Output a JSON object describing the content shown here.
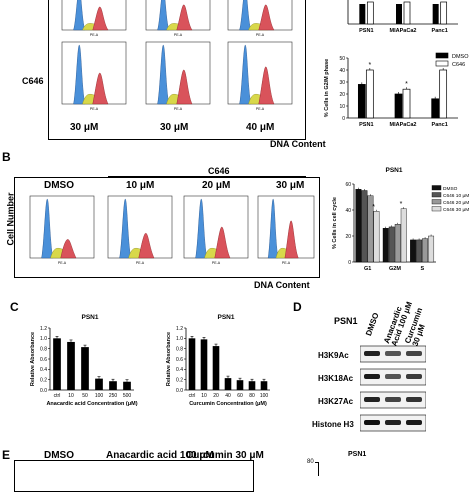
{
  "panel_letters": {
    "b": "B",
    "c": "C",
    "d": "D",
    "e": "E"
  },
  "panelA": {
    "row_label": "C646",
    "conc_labels": [
      "30 μM",
      "30 μM",
      "40 μM"
    ],
    "x_axis": "DNA Content",
    "pe_label": "PE-A"
  },
  "panelA_chart_top": {
    "categories": [
      "PSN1",
      "MIAPaCa2",
      "Panc1"
    ]
  },
  "panelA_chart_g2m": {
    "type": "bar",
    "ylabel": "% Cells in G2/M phase",
    "categories": [
      "PSN1",
      "MIAPaCa2",
      "Panc1"
    ],
    "series": [
      {
        "name": "DMSO",
        "values": [
          28,
          20,
          16
        ]
      },
      {
        "name": "C646",
        "values": [
          40,
          24,
          40
        ]
      }
    ],
    "yticks": [
      "0",
      "10",
      "20",
      "30",
      "40",
      "50"
    ],
    "ylim": [
      0,
      50
    ],
    "significance": [
      "*",
      "*",
      "*"
    ]
  },
  "panelB": {
    "y_label": "Cell Number",
    "treatment": "C646",
    "samples": [
      "DMSO",
      "10 μM",
      "20 μM",
      "30 μM"
    ],
    "x_axis": "DNA Content",
    "pe_label": "PE-A"
  },
  "chart_data": [
    {
      "type": "bar",
      "title": "PSN1",
      "ylabel": "% Cells in cell cycle",
      "categories": [
        "G1",
        "G2M",
        "S"
      ],
      "series": [
        {
          "name": "DMSO",
          "values": [
            56,
            26,
            17
          ]
        },
        {
          "name": "C646 10 μM",
          "values": [
            55,
            27,
            17
          ]
        },
        {
          "name": "C646 20 μM",
          "values": [
            51,
            29,
            18
          ]
        },
        {
          "name": "C646 30 μM",
          "values": [
            39,
            41,
            20
          ]
        }
      ],
      "colors": [
        "#111111",
        "#555555",
        "#999999",
        "#dddddd"
      ],
      "yticks": [
        "0",
        "20",
        "40",
        "60"
      ],
      "ylim": [
        0,
        60
      ],
      "significance": [
        "*",
        "*",
        ""
      ]
    },
    {
      "type": "bar",
      "title": "PSN1",
      "xlabel": "Anacardic acid Concentration (μM)",
      "ylabel": "Relative Absorbance",
      "categories": [
        "ctrl",
        "10",
        "50",
        "100",
        "250",
        "500"
      ],
      "values": [
        1.0,
        0.93,
        0.83,
        0.22,
        0.17,
        0.16
      ],
      "yticks": [
        "0.0",
        "0.2",
        "0.4",
        "0.6",
        "0.8",
        "1.0",
        "1.2"
      ],
      "ylim": [
        0,
        1.2
      ]
    },
    {
      "type": "bar",
      "title": "PSN1",
      "xlabel": "Curcumin Concentration (μM)",
      "ylabel": "Relative Absorbance",
      "categories": [
        "ctrl",
        "10",
        "20",
        "40",
        "60",
        "80",
        "100"
      ],
      "values": [
        1.0,
        0.98,
        0.85,
        0.23,
        0.19,
        0.17,
        0.17
      ],
      "yticks": [
        "0.0",
        "0.2",
        "0.4",
        "0.6",
        "0.8",
        "1.0",
        "1.2"
      ],
      "ylim": [
        0,
        1.2
      ]
    }
  ],
  "panelD": {
    "title": "PSN1",
    "lanes": [
      "DMSO",
      "Anacardic Acid 100 μM",
      "Curcumin 30 μM"
    ],
    "bands": [
      "H3K9Ac",
      "H3K18Ac",
      "H3K27Ac",
      "Histone H3"
    ]
  },
  "panelE": {
    "samples": [
      "DMSO",
      "Anacardic acid 100 μM",
      "Curcumin 30 μM"
    ],
    "chart_title": "PSN1",
    "ytick_top": "80"
  }
}
